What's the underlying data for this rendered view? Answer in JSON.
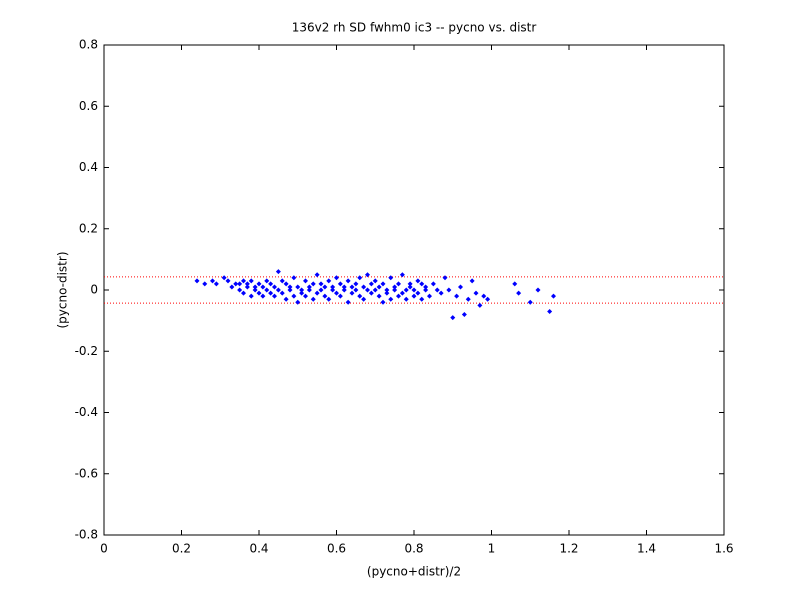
{
  "chart_data": {
    "type": "scatter",
    "title": "136v2 rh SD fwhm0 ic3 -- pycno vs. distr",
    "x_label": "(pycno+distr)/2",
    "y_label": "(pycno-distr)",
    "xlim": [
      0,
      1.6
    ],
    "ylim": [
      -0.8,
      0.8
    ],
    "xticks": [
      0,
      0.2,
      0.4,
      0.6,
      0.8,
      1,
      1.2,
      1.4,
      1.6
    ],
    "yticks": [
      -0.8,
      -0.6,
      -0.4,
      -0.2,
      0,
      0.2,
      0.4,
      0.6,
      0.8
    ],
    "reference_lines": {
      "color": "#ff0000",
      "values": [
        0.043,
        -0.043
      ]
    },
    "series": [
      {
        "color": "#0000ff",
        "x": [
          0.24,
          0.26,
          0.28,
          0.29,
          0.31,
          0.32,
          0.33,
          0.34,
          0.35,
          0.35,
          0.36,
          0.36,
          0.37,
          0.37,
          0.38,
          0.38,
          0.39,
          0.39,
          0.4,
          0.4,
          0.41,
          0.41,
          0.42,
          0.42,
          0.43,
          0.43,
          0.44,
          0.44,
          0.45,
          0.45,
          0.46,
          0.46,
          0.47,
          0.47,
          0.48,
          0.48,
          0.49,
          0.49,
          0.5,
          0.5,
          0.51,
          0.51,
          0.52,
          0.52,
          0.53,
          0.53,
          0.54,
          0.54,
          0.55,
          0.55,
          0.56,
          0.56,
          0.57,
          0.57,
          0.58,
          0.58,
          0.59,
          0.59,
          0.6,
          0.6,
          0.61,
          0.61,
          0.62,
          0.62,
          0.63,
          0.63,
          0.64,
          0.64,
          0.65,
          0.65,
          0.66,
          0.66,
          0.67,
          0.67,
          0.68,
          0.68,
          0.69,
          0.69,
          0.7,
          0.7,
          0.71,
          0.71,
          0.72,
          0.72,
          0.73,
          0.73,
          0.74,
          0.74,
          0.75,
          0.75,
          0.76,
          0.76,
          0.77,
          0.77,
          0.78,
          0.78,
          0.79,
          0.79,
          0.8,
          0.8,
          0.81,
          0.81,
          0.82,
          0.82,
          0.83,
          0.83,
          0.84,
          0.85,
          0.86,
          0.87,
          0.88,
          0.89,
          0.9,
          0.91,
          0.92,
          0.93,
          0.94,
          0.95,
          0.96,
          0.97,
          0.98,
          0.99,
          1.06,
          1.07,
          1.1,
          1.12,
          1.15,
          1.16
        ],
        "values": [
          0.03,
          0.02,
          0.03,
          0.02,
          0.04,
          0.03,
          0.01,
          0.02,
          0.0,
          0.02,
          0.03,
          -0.01,
          0.01,
          0.02,
          0.03,
          -0.02,
          0.0,
          0.01,
          -0.01,
          0.02,
          0.01,
          -0.02,
          0.03,
          0.0,
          0.02,
          -0.01,
          0.01,
          -0.02,
          0.06,
          0.0,
          0.03,
          -0.01,
          0.02,
          -0.03,
          0.0,
          0.01,
          -0.02,
          0.04,
          0.01,
          -0.04,
          0.0,
          -0.01,
          0.03,
          -0.02,
          0.01,
          0.0,
          -0.03,
          0.02,
          0.05,
          -0.01,
          0.0,
          0.02,
          -0.02,
          0.01,
          0.03,
          -0.03,
          0.0,
          0.01,
          -0.01,
          0.04,
          0.02,
          -0.02,
          0.0,
          0.01,
          -0.04,
          0.03,
          0.01,
          -0.01,
          0.02,
          0.0,
          -0.02,
          0.04,
          0.01,
          -0.03,
          0.0,
          0.05,
          0.02,
          -0.01,
          0.0,
          0.03,
          -0.02,
          0.01,
          -0.04,
          0.02,
          0.0,
          -0.01,
          0.04,
          -0.03,
          0.01,
          0.0,
          -0.02,
          0.02,
          0.05,
          -0.01,
          0.0,
          -0.03,
          0.01,
          0.02,
          -0.02,
          0.0,
          0.03,
          -0.01,
          0.02,
          -0.03,
          0.0,
          0.01,
          -0.02,
          0.02,
          0.0,
          -0.01,
          0.04,
          0.0,
          -0.09,
          -0.02,
          0.01,
          -0.08,
          -0.03,
          0.03,
          -0.01,
          -0.05,
          -0.02,
          -0.03,
          0.02,
          -0.01,
          -0.04,
          0.0,
          -0.07,
          -0.02
        ]
      }
    ]
  }
}
